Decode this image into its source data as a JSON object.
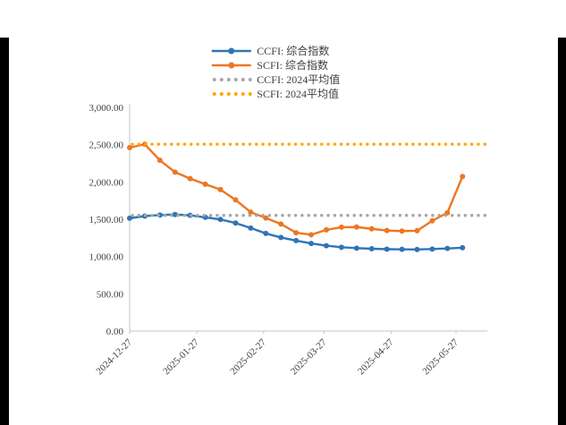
{
  "page": {
    "background": "#ffffff",
    "edge_bar_color": "#000000"
  },
  "chart_data": {
    "type": "line",
    "title": "",
    "xlabel": "",
    "ylabel": "",
    "layout": {
      "grid": false,
      "legend_position": "top-center",
      "axis_color": "#C6C6C6",
      "label_color": "#404040"
    },
    "x_axis": {
      "tick_labels": [
        "2024-12-27",
        "2025-01-27",
        "2025-02-27",
        "2025-03-27",
        "2025-04-27",
        "2025-05-27"
      ],
      "tick_days": [
        0,
        31,
        62,
        90,
        121,
        151
      ],
      "label_rotation_deg": -45
    },
    "y_axis": {
      "range": [
        0,
        3000
      ],
      "ticks": [
        0,
        500,
        1000,
        1500,
        2000,
        2500,
        3000
      ],
      "tick_labels": [
        "0.00",
        "500.00",
        "1,000.00",
        "1,500.00",
        "2,000.00",
        "2,500.00",
        "3,000.00"
      ]
    },
    "series": [
      {
        "name": "CCFI: 综合指数",
        "type": "line",
        "color": "#2E75B6",
        "marker": true,
        "days": [
          0,
          7,
          14,
          21,
          28,
          35,
          42,
          49,
          56,
          63,
          70,
          77,
          84,
          91,
          98,
          105,
          112,
          119,
          126,
          133,
          140,
          147,
          154
        ],
        "values": [
          1513,
          1542,
          1556,
          1563,
          1552,
          1525,
          1497,
          1449,
          1382,
          1309,
          1255,
          1213,
          1175,
          1145,
          1124,
          1112,
          1104,
          1098,
          1096,
          1094,
          1100,
          1108,
          1117
        ]
      },
      {
        "name": "SCFI: 综合指数",
        "type": "line",
        "color": "#EE7623",
        "marker": true,
        "days": [
          0,
          7,
          14,
          21,
          28,
          35,
          42,
          49,
          56,
          63,
          70,
          77,
          84,
          91,
          98,
          105,
          112,
          119,
          126,
          133,
          140,
          147,
          154
        ],
        "values": [
          2460,
          2505,
          2290,
          2131,
          2045,
          1970,
          1897,
          1759,
          1595,
          1516,
          1436,
          1319,
          1292,
          1357,
          1393,
          1395,
          1371,
          1348,
          1341,
          1345,
          1479,
          1586,
          2073
        ]
      },
      {
        "name": "CCFI: 2024平均值",
        "type": "hline",
        "color": "#A6A6A6",
        "value": 1551
      },
      {
        "name": "SCFI: 2024平均值",
        "type": "hline",
        "color": "#FFA500",
        "value": 2506
      }
    ]
  }
}
